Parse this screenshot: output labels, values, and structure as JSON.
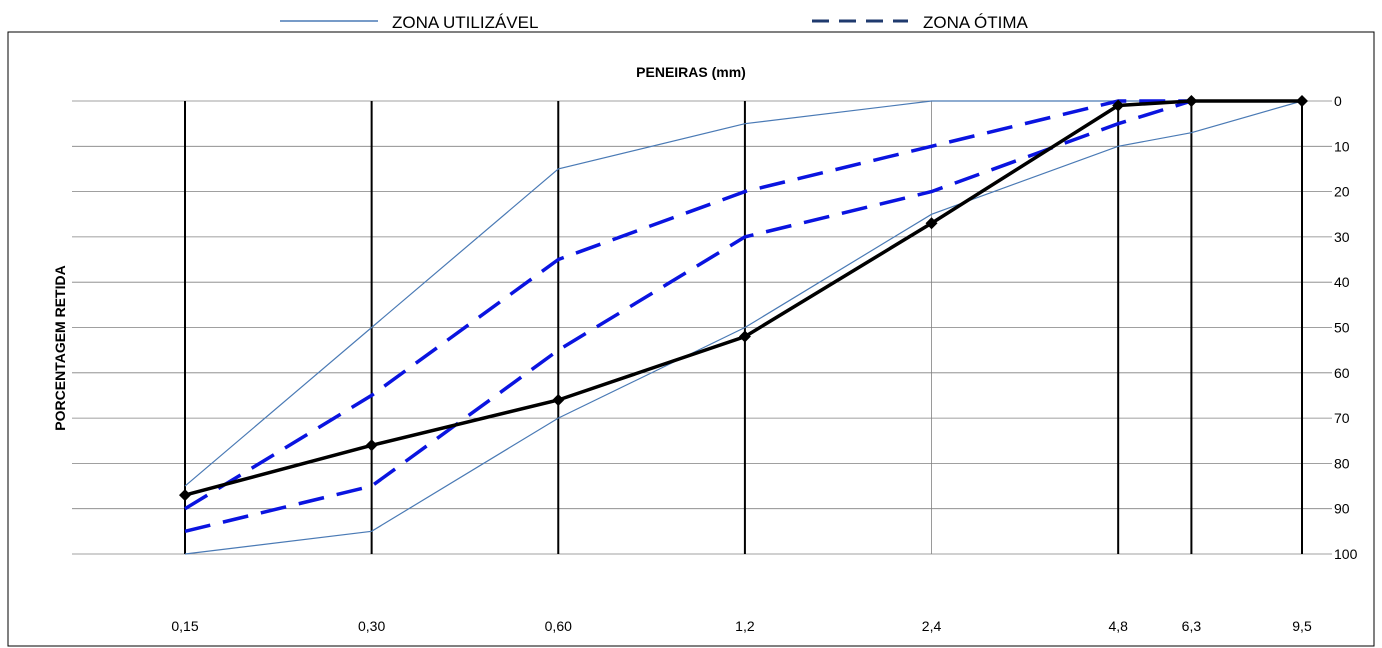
{
  "legend": {
    "usable_label": "ZONA UTILIZÁVEL",
    "optimal_label": "ZONA ÓTIMA"
  },
  "colors": {
    "usable": "#4a7ab5",
    "optimal": "#0a14e0",
    "sample": "#000000",
    "grid": "#808080",
    "sieve": "#000000"
  },
  "chart_data": {
    "type": "line",
    "title": "PENEIRAS (mm)",
    "xlabel": "",
    "ylabel": "PORCENTAGEM RETIDA",
    "x_scale": "log",
    "y_axis_position": "right",
    "y_inverted": true,
    "ylim": [
      0,
      100
    ],
    "y_ticks": [
      0,
      10,
      20,
      30,
      40,
      50,
      60,
      70,
      80,
      90,
      100
    ],
    "x_ticks": [
      0.15,
      0.3,
      0.6,
      1.2,
      2.4,
      4.8,
      6.3,
      9.5
    ],
    "x_tick_labels": [
      "0,15",
      "0,30",
      "0,60",
      "1,2",
      "2,4",
      "4,8",
      "6,3",
      "9,5"
    ],
    "grid": true,
    "legend_position": "top",
    "series": [
      {
        "name": "ZONA UTILIZÁVEL",
        "style": "usable",
        "x": [
          0.15,
          0.3,
          0.6,
          1.2,
          2.4,
          4.8,
          6.3,
          9.5
        ],
        "values": [
          100,
          95,
          70,
          50,
          25,
          10,
          7,
          0
        ]
      },
      {
        "name": "ZONA UTILIZÁVEL",
        "style": "usable",
        "x": [
          0.15,
          0.3,
          0.6,
          1.2,
          2.4,
          4.8,
          6.3,
          9.5
        ],
        "values": [
          85,
          50,
          15,
          5,
          0,
          0,
          0,
          0
        ]
      },
      {
        "name": "ZONA ÓTIMA",
        "style": "optimal",
        "x": [
          0.15,
          0.3,
          0.6,
          1.2,
          2.4,
          4.8,
          6.3
        ],
        "values": [
          95,
          85,
          55,
          30,
          20,
          5,
          0
        ]
      },
      {
        "name": "ZONA ÓTIMA",
        "style": "optimal",
        "x": [
          0.15,
          0.3,
          0.6,
          1.2,
          2.4,
          4.8,
          6.3
        ],
        "values": [
          90,
          65,
          35,
          20,
          10,
          0,
          0
        ]
      },
      {
        "name": "",
        "style": "sample",
        "x": [
          0.15,
          0.3,
          0.6,
          1.2,
          2.4,
          4.8,
          6.3,
          9.5
        ],
        "values": [
          87,
          76,
          66,
          52,
          27,
          1,
          0,
          0
        ]
      }
    ]
  }
}
